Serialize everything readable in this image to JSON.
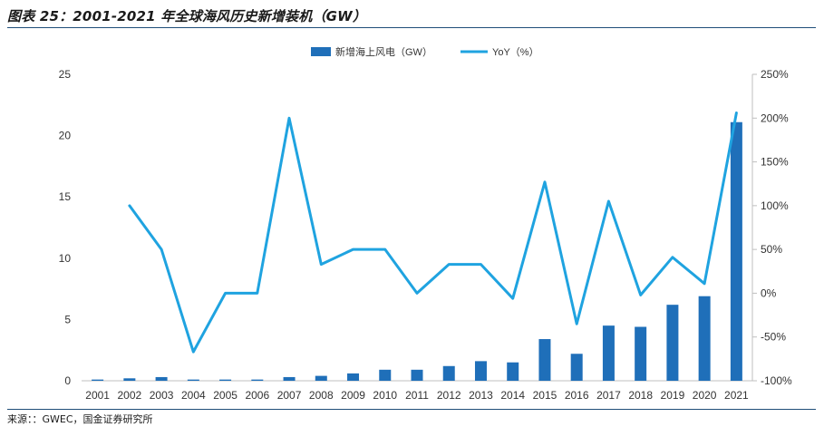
{
  "title": "图表 25：2001-2021 年全球海风历史新增装机（GW）",
  "source": "来源：：GWEC，国金证券研究所",
  "colors": {
    "bar": "#1f6fb9",
    "line": "#1fa3e0",
    "axis_text": "#333333",
    "axis_line": "#bfbfbf"
  },
  "chart_data": {
    "type": "bar",
    "categories": [
      "2001",
      "2002",
      "2003",
      "2004",
      "2005",
      "2006",
      "2007",
      "2008",
      "2009",
      "2010",
      "2011",
      "2012",
      "2013",
      "2014",
      "2015",
      "2016",
      "2017",
      "2018",
      "2019",
      "2020",
      "2021"
    ],
    "series": [
      {
        "name": "新增海上风电（GW）",
        "type": "bar",
        "axis": "left",
        "values": [
          0.1,
          0.2,
          0.3,
          0.1,
          0.1,
          0.1,
          0.3,
          0.4,
          0.6,
          0.9,
          0.9,
          1.2,
          1.6,
          1.5,
          3.4,
          2.2,
          4.5,
          4.4,
          6.2,
          6.9,
          21.1
        ]
      },
      {
        "name": "YoY（%）",
        "type": "line",
        "axis": "right",
        "values": [
          null,
          100,
          50,
          -67,
          0,
          0,
          200,
          33,
          50,
          50,
          0,
          33,
          33,
          -6,
          127,
          -35,
          105,
          -2,
          41,
          11,
          206
        ]
      }
    ],
    "y_left": {
      "range": [
        0,
        25
      ],
      "ticks": [
        0,
        5,
        10,
        15,
        20,
        25
      ],
      "tick_labels": [
        "0",
        "5",
        "10",
        "15",
        "20",
        "25"
      ]
    },
    "y_right": {
      "range": [
        -100,
        250
      ],
      "ticks": [
        -100,
        -50,
        0,
        50,
        100,
        150,
        200,
        250
      ],
      "tick_labels": [
        "-100%",
        "-50%",
        "0%",
        "50%",
        "100%",
        "150%",
        "200%",
        "250%"
      ]
    },
    "legend_placement": "top-center",
    "grid": false
  }
}
